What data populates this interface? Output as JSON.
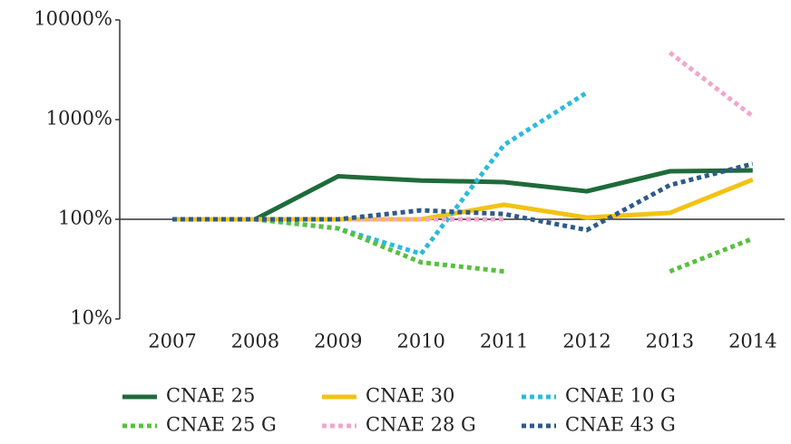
{
  "chart_data": {
    "type": "line",
    "categories": [
      "2007",
      "2008",
      "2009",
      "2010",
      "2011",
      "2012",
      "2013",
      "2014"
    ],
    "yscale": "log",
    "x_axis_crosses": 100,
    "ylim": [
      10,
      10000
    ],
    "yticks": [
      {
        "value": 10,
        "label": "10%"
      },
      {
        "value": 100,
        "label": "100%"
      },
      {
        "value": 1000,
        "label": "1000%"
      },
      {
        "value": 10000,
        "label": "10000%"
      }
    ],
    "grid": false,
    "legend": "bottom",
    "series": [
      {
        "name": "CNAE 25",
        "color": "#1e6b3a",
        "dashed": false,
        "values": [
          100,
          100,
          270,
          245,
          236,
          191,
          303,
          310
        ]
      },
      {
        "name": "CNAE 30",
        "color": "#f2c314",
        "dashed": false,
        "values": [
          100,
          100,
          100,
          100,
          140,
          104,
          116,
          250
        ]
      },
      {
        "name": "CNAE 10 G",
        "color": "#2cbbdb",
        "dashed": true,
        "values": [
          100,
          100,
          81,
          45,
          556,
          1870,
          null,
          null
        ]
      },
      {
        "name": "CNAE 25 G",
        "color": "#58c040",
        "dashed": true,
        "values": [
          100,
          100,
          81,
          37,
          30,
          null,
          30,
          64
        ]
      },
      {
        "name": "CNAE 28 G",
        "color": "#f2a6cc",
        "dashed": true,
        "values": [
          100,
          100,
          100,
          100,
          100,
          null,
          4700,
          1080
        ]
      },
      {
        "name": "CNAE 43 G",
        "color": "#2f5a8a",
        "dashed": true,
        "values": [
          100,
          100,
          100,
          123,
          113,
          78,
          220,
          360
        ]
      }
    ]
  }
}
